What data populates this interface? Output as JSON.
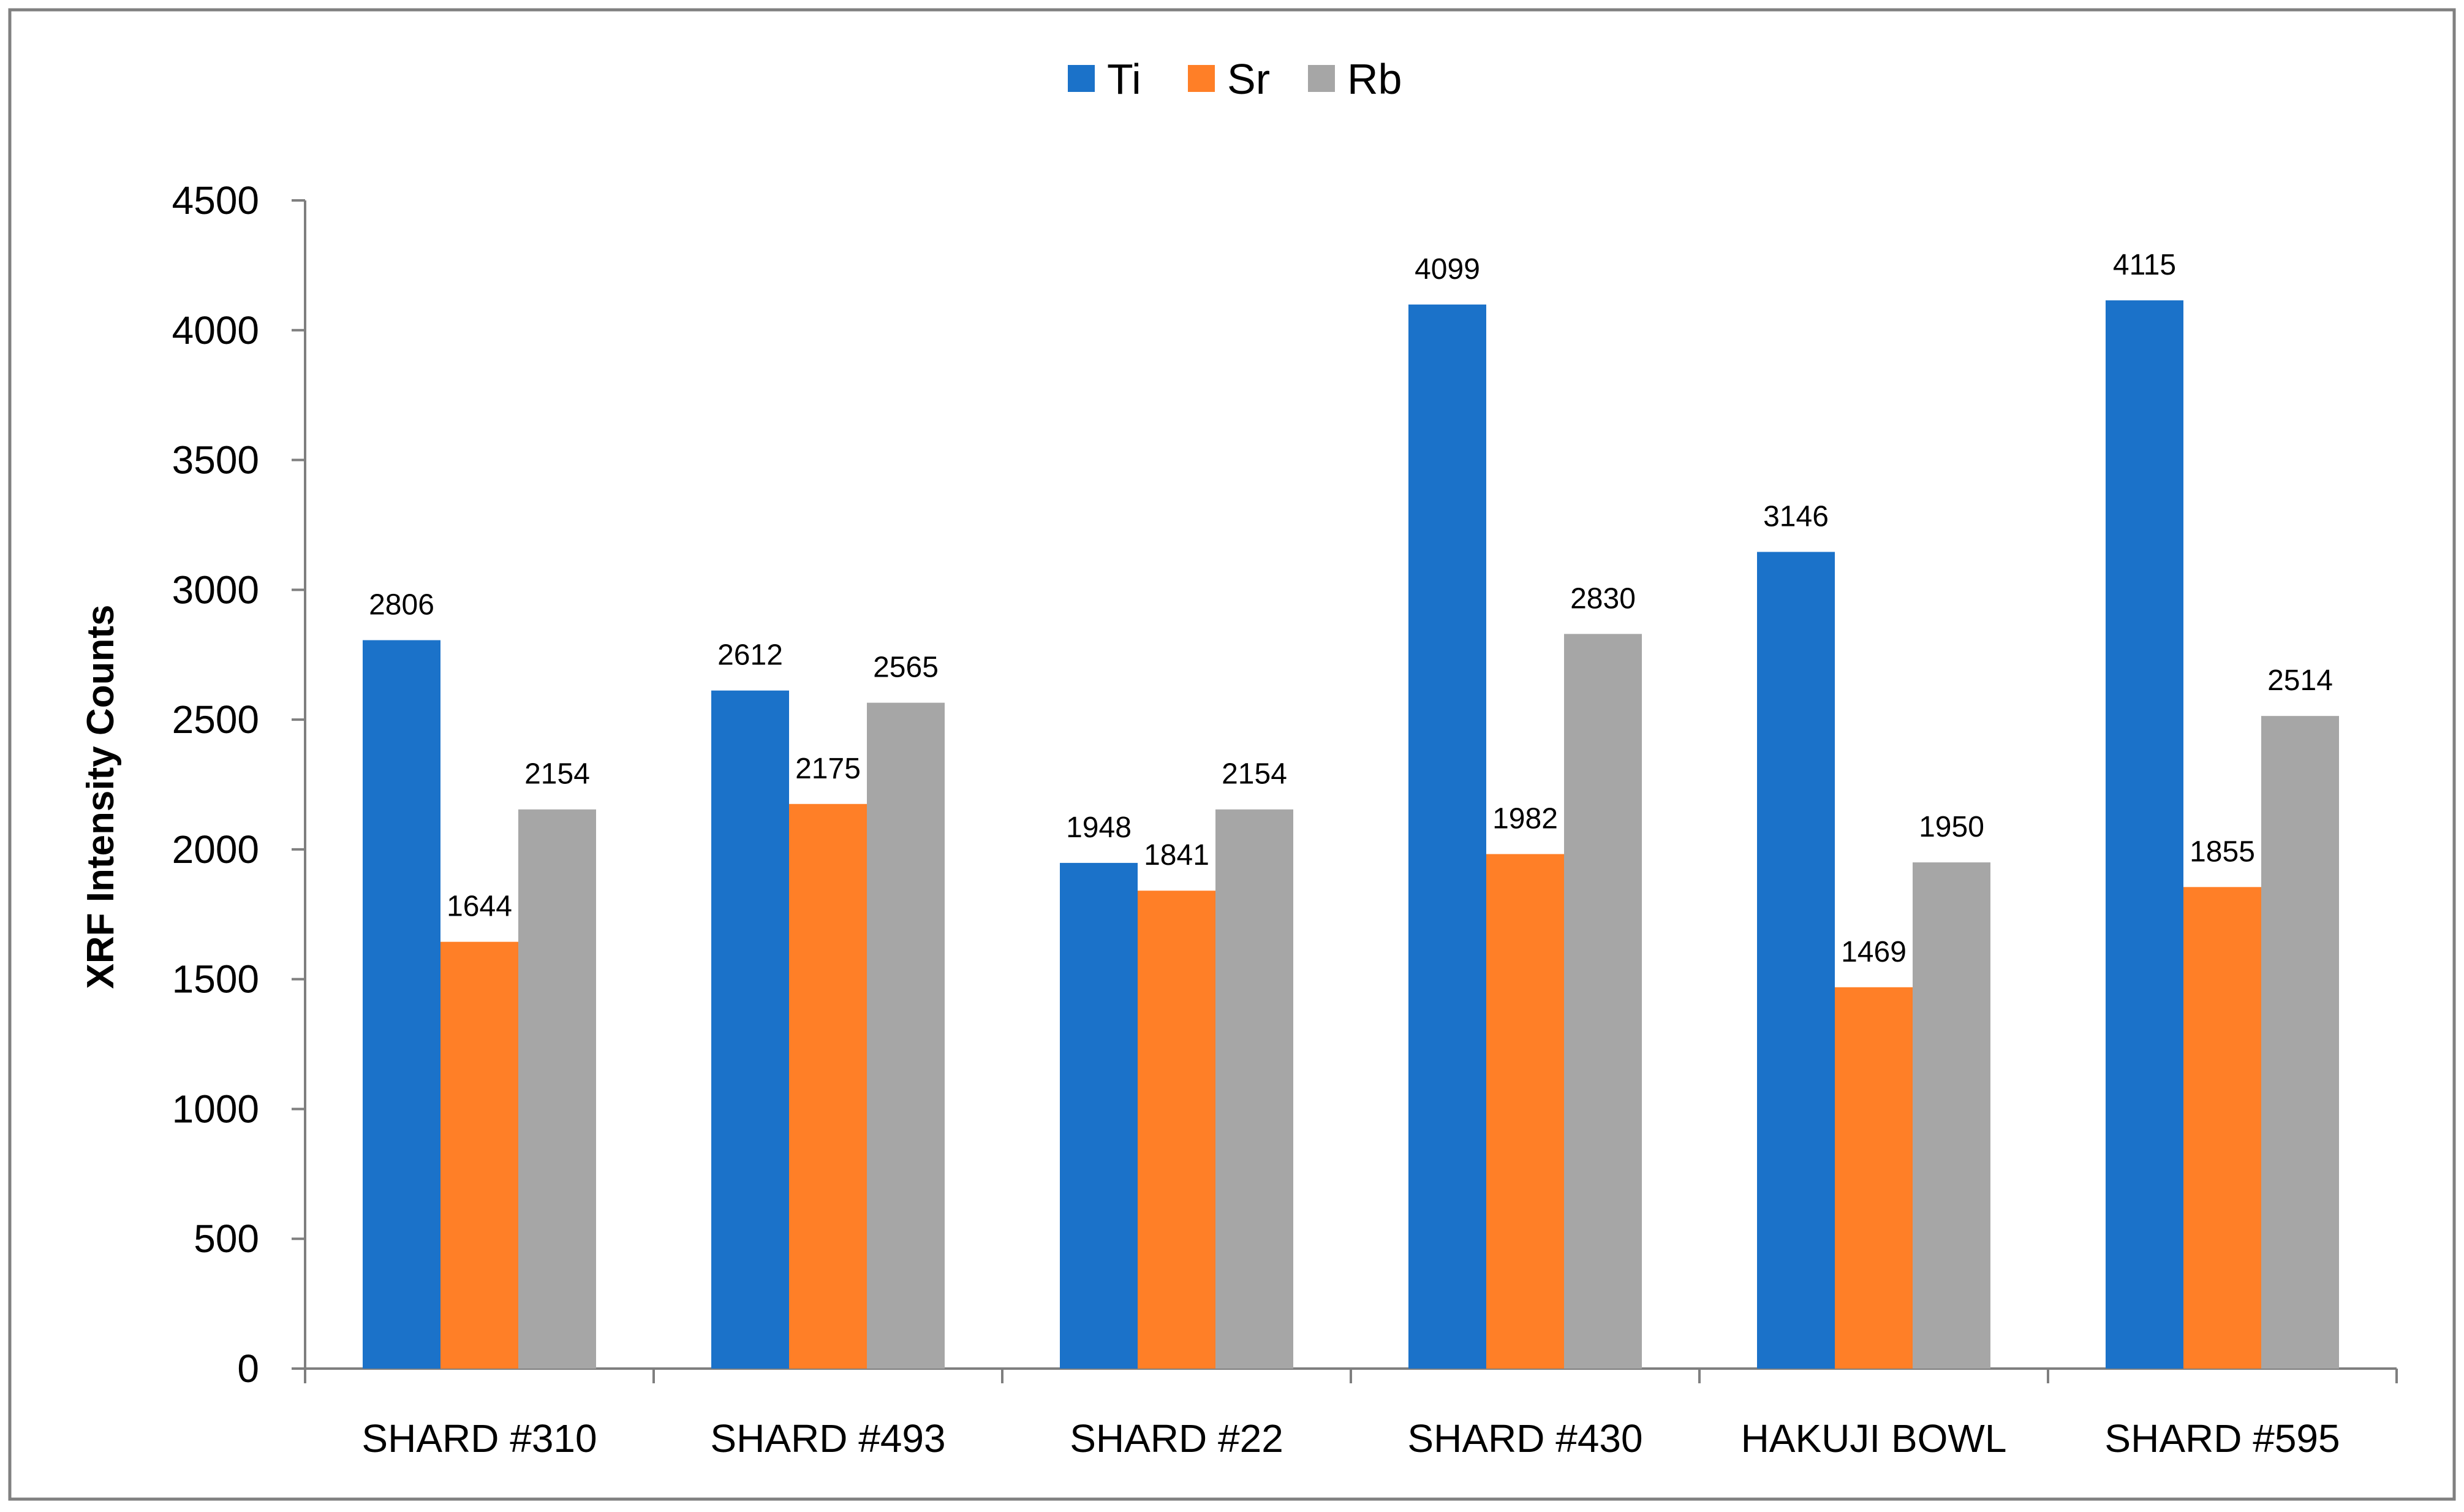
{
  "chart_data": {
    "type": "bar",
    "title": "",
    "xlabel": "",
    "ylabel": "XRF Intensity Counts",
    "ylim": [
      0,
      4500
    ],
    "yticks": [
      0,
      500,
      1000,
      1500,
      2000,
      2500,
      3000,
      3500,
      4000,
      4500
    ],
    "grid": false,
    "legend_position": "top-center",
    "categories": [
      "SHARD #310",
      "SHARD #493",
      "SHARD #22",
      "SHARD #430",
      "HAKUJI BOWL",
      "SHARD #595"
    ],
    "series": [
      {
        "name": "Ti",
        "color": "#1B72C9",
        "values": [
          2806,
          2612,
          1948,
          4099,
          3146,
          4115
        ]
      },
      {
        "name": "Sr",
        "color": "#FF7F27",
        "values": [
          1644,
          2175,
          1841,
          1982,
          1469,
          1855
        ]
      },
      {
        "name": "Rb",
        "color": "#A6A6A6",
        "values": [
          2154,
          2565,
          2154,
          2830,
          1950,
          2514
        ]
      }
    ]
  },
  "colors": {
    "axis": "#7F7F7F",
    "border": "#808080"
  }
}
